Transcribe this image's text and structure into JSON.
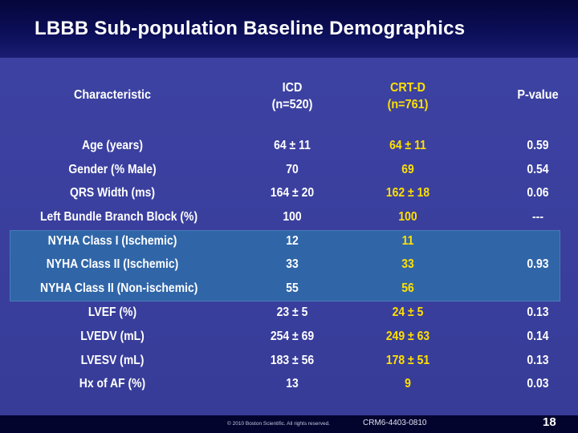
{
  "slide": {
    "title": "LBBB Sub-population Baseline Demographics",
    "footer_copyright": "© 2010 Boston Scientific. All rights reserved.",
    "footer_code": "CRM6-4403-0810",
    "page_number": "18"
  },
  "table": {
    "headers": {
      "characteristic": "Characteristic",
      "icd_line1": "ICD",
      "icd_line2": "(n=520)",
      "crt_line1": "CRT-D",
      "crt_line2": "(n=761)",
      "pvalue": "P-value"
    },
    "rows": [
      {
        "label": "Age (years)",
        "icd": "64 ± 11",
        "crt": "64 ± 11",
        "p": "0.59"
      },
      {
        "label": "Gender (% Male)",
        "icd": "70",
        "crt": "69",
        "p": "0.54"
      },
      {
        "label": "QRS Width (ms)",
        "icd": "164 ± 20",
        "crt": "162 ± 18",
        "p": "0.06"
      },
      {
        "label": "Left Bundle Branch Block (%)",
        "icd": "100",
        "crt": "100",
        "p": "---"
      },
      {
        "label": "NYHA Class I (Ischemic)",
        "icd": "12",
        "crt": "11",
        "p": ""
      },
      {
        "label": "NYHA Class II (Ischemic)",
        "icd": "33",
        "crt": "33",
        "p": "0.93"
      },
      {
        "label": "NYHA Class II (Non-ischemic)",
        "icd": "55",
        "crt": "56",
        "p": ""
      },
      {
        "label": "LVEF (%)",
        "icd": "23 ± 5",
        "crt": "24 ± 5",
        "p": "0.13"
      },
      {
        "label": "LVEDV (mL)",
        "icd": "254 ± 69",
        "crt": "249 ± 63",
        "p": "0.14"
      },
      {
        "label": "LVESV (mL)",
        "icd": "183 ± 56",
        "crt": "178 ± 51",
        "p": "0.13"
      },
      {
        "label": "Hx of AF (%)",
        "icd": "13",
        "crt": "9",
        "p": "0.03"
      }
    ]
  },
  "colors": {
    "background": "#3a3f9a",
    "highlight_band": "#3066a8",
    "crt_text": "#ffe000",
    "text": "#ffffff"
  }
}
